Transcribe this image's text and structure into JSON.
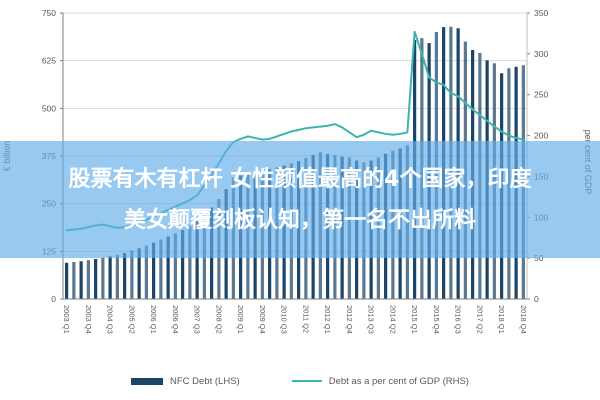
{
  "overlay": {
    "title_line1": "股票有木有杠杆 女性颜值最高的4个国家，印度",
    "title_line2": "美女颠覆刻板认知，第一名不出所料",
    "band_color": "#61ade9"
  },
  "chart_data": {
    "type": "bar",
    "title": "",
    "categories": [
      "2003 Q1",
      "2003 Q2",
      "2003 Q3",
      "2003 Q4",
      "2004 Q1",
      "2004 Q2",
      "2004 Q3",
      "2004 Q4",
      "2005 Q1",
      "2005 Q2",
      "2005 Q3",
      "2005 Q4",
      "2006 Q1",
      "2006 Q2",
      "2006 Q3",
      "2006 Q4",
      "2007 Q1",
      "2007 Q2",
      "2007 Q3",
      "2007 Q4",
      "2008 Q1",
      "2008 Q2",
      "2008 Q3",
      "2008 Q4",
      "2009 Q1",
      "2009 Q2",
      "2009 Q3",
      "2009 Q4",
      "2010 Q1",
      "2010 Q2",
      "2010 Q3",
      "2010 Q4",
      "2011 Q1",
      "2011 Q2",
      "2011 Q3",
      "2011 Q4",
      "2012 Q1",
      "2012 Q2",
      "2012 Q3",
      "2012 Q4",
      "2013 Q1",
      "2013 Q2",
      "2013 Q3",
      "2013 Q4",
      "2014 Q1",
      "2014 Q2",
      "2014 Q3",
      "2014 Q4",
      "2015 Q1",
      "2015 Q2",
      "2015 Q3",
      "2015 Q4",
      "2016 Q1",
      "2016 Q2",
      "2016 Q3",
      "2016 Q4",
      "2017 Q1",
      "2017 Q2",
      "2017 Q3",
      "2017 Q4",
      "2018 Q1",
      "2018 Q2",
      "2018 Q3",
      "2018 Q4"
    ],
    "x_tick_every": 3,
    "series": [
      {
        "name": "NFC Debt (LHS)",
        "type": "bar",
        "axis": "left",
        "color": "#1c4467",
        "values": [
          95,
          97,
          99,
          102,
          105,
          108,
          112,
          116,
          121,
          127,
          133,
          140,
          148,
          156,
          164,
          172,
          181,
          191,
          204,
          218,
          240,
          262,
          288,
          318,
          324,
          329,
          333,
          337,
          340,
          345,
          350,
          356,
          362,
          370,
          378,
          385,
          380,
          377,
          373,
          371,
          363,
          358,
          363,
          371,
          381,
          389,
          395,
          403,
          679,
          684,
          671,
          700,
          713,
          714,
          710,
          675,
          653,
          645,
          626,
          618,
          592,
          605,
          609,
          613
        ]
      },
      {
        "name": "Debt as a per cent of GDP (RHS)",
        "type": "line",
        "axis": "right",
        "color": "#3cb5ac",
        "values": [
          84,
          85,
          86,
          88,
          90,
          91,
          89,
          87,
          88,
          90,
          93,
          97,
          101,
          105,
          109,
          113,
          117,
          121,
          127,
          139,
          152,
          166,
          181,
          192,
          196,
          199,
          197,
          195,
          196,
          199,
          202,
          205,
          207,
          209,
          210,
          211,
          212,
          214,
          210,
          204,
          198,
          201,
          206,
          204,
          202,
          201,
          202,
          204,
          327,
          300,
          271,
          265,
          262,
          252,
          248,
          240,
          232,
          225,
          218,
          211,
          205,
          200,
          197,
          195
        ]
      }
    ],
    "left_axis": {
      "title": "€ billion",
      "min": 0,
      "max": 750,
      "step": 125,
      "ticks": [
        "0",
        "125",
        "250",
        "375",
        "500",
        "625",
        "750"
      ]
    },
    "right_axis": {
      "title": "per cent of GDP",
      "min": 0,
      "max": 350,
      "step": 50,
      "ticks": [
        "0",
        "50",
        "100",
        "150",
        "200",
        "250",
        "300",
        "350"
      ]
    },
    "grid": true,
    "legend_position": "bottom",
    "colors": {
      "grid": "#d9d9d9",
      "axis": "#7f7f7f",
      "tick_text": "#595959"
    }
  }
}
